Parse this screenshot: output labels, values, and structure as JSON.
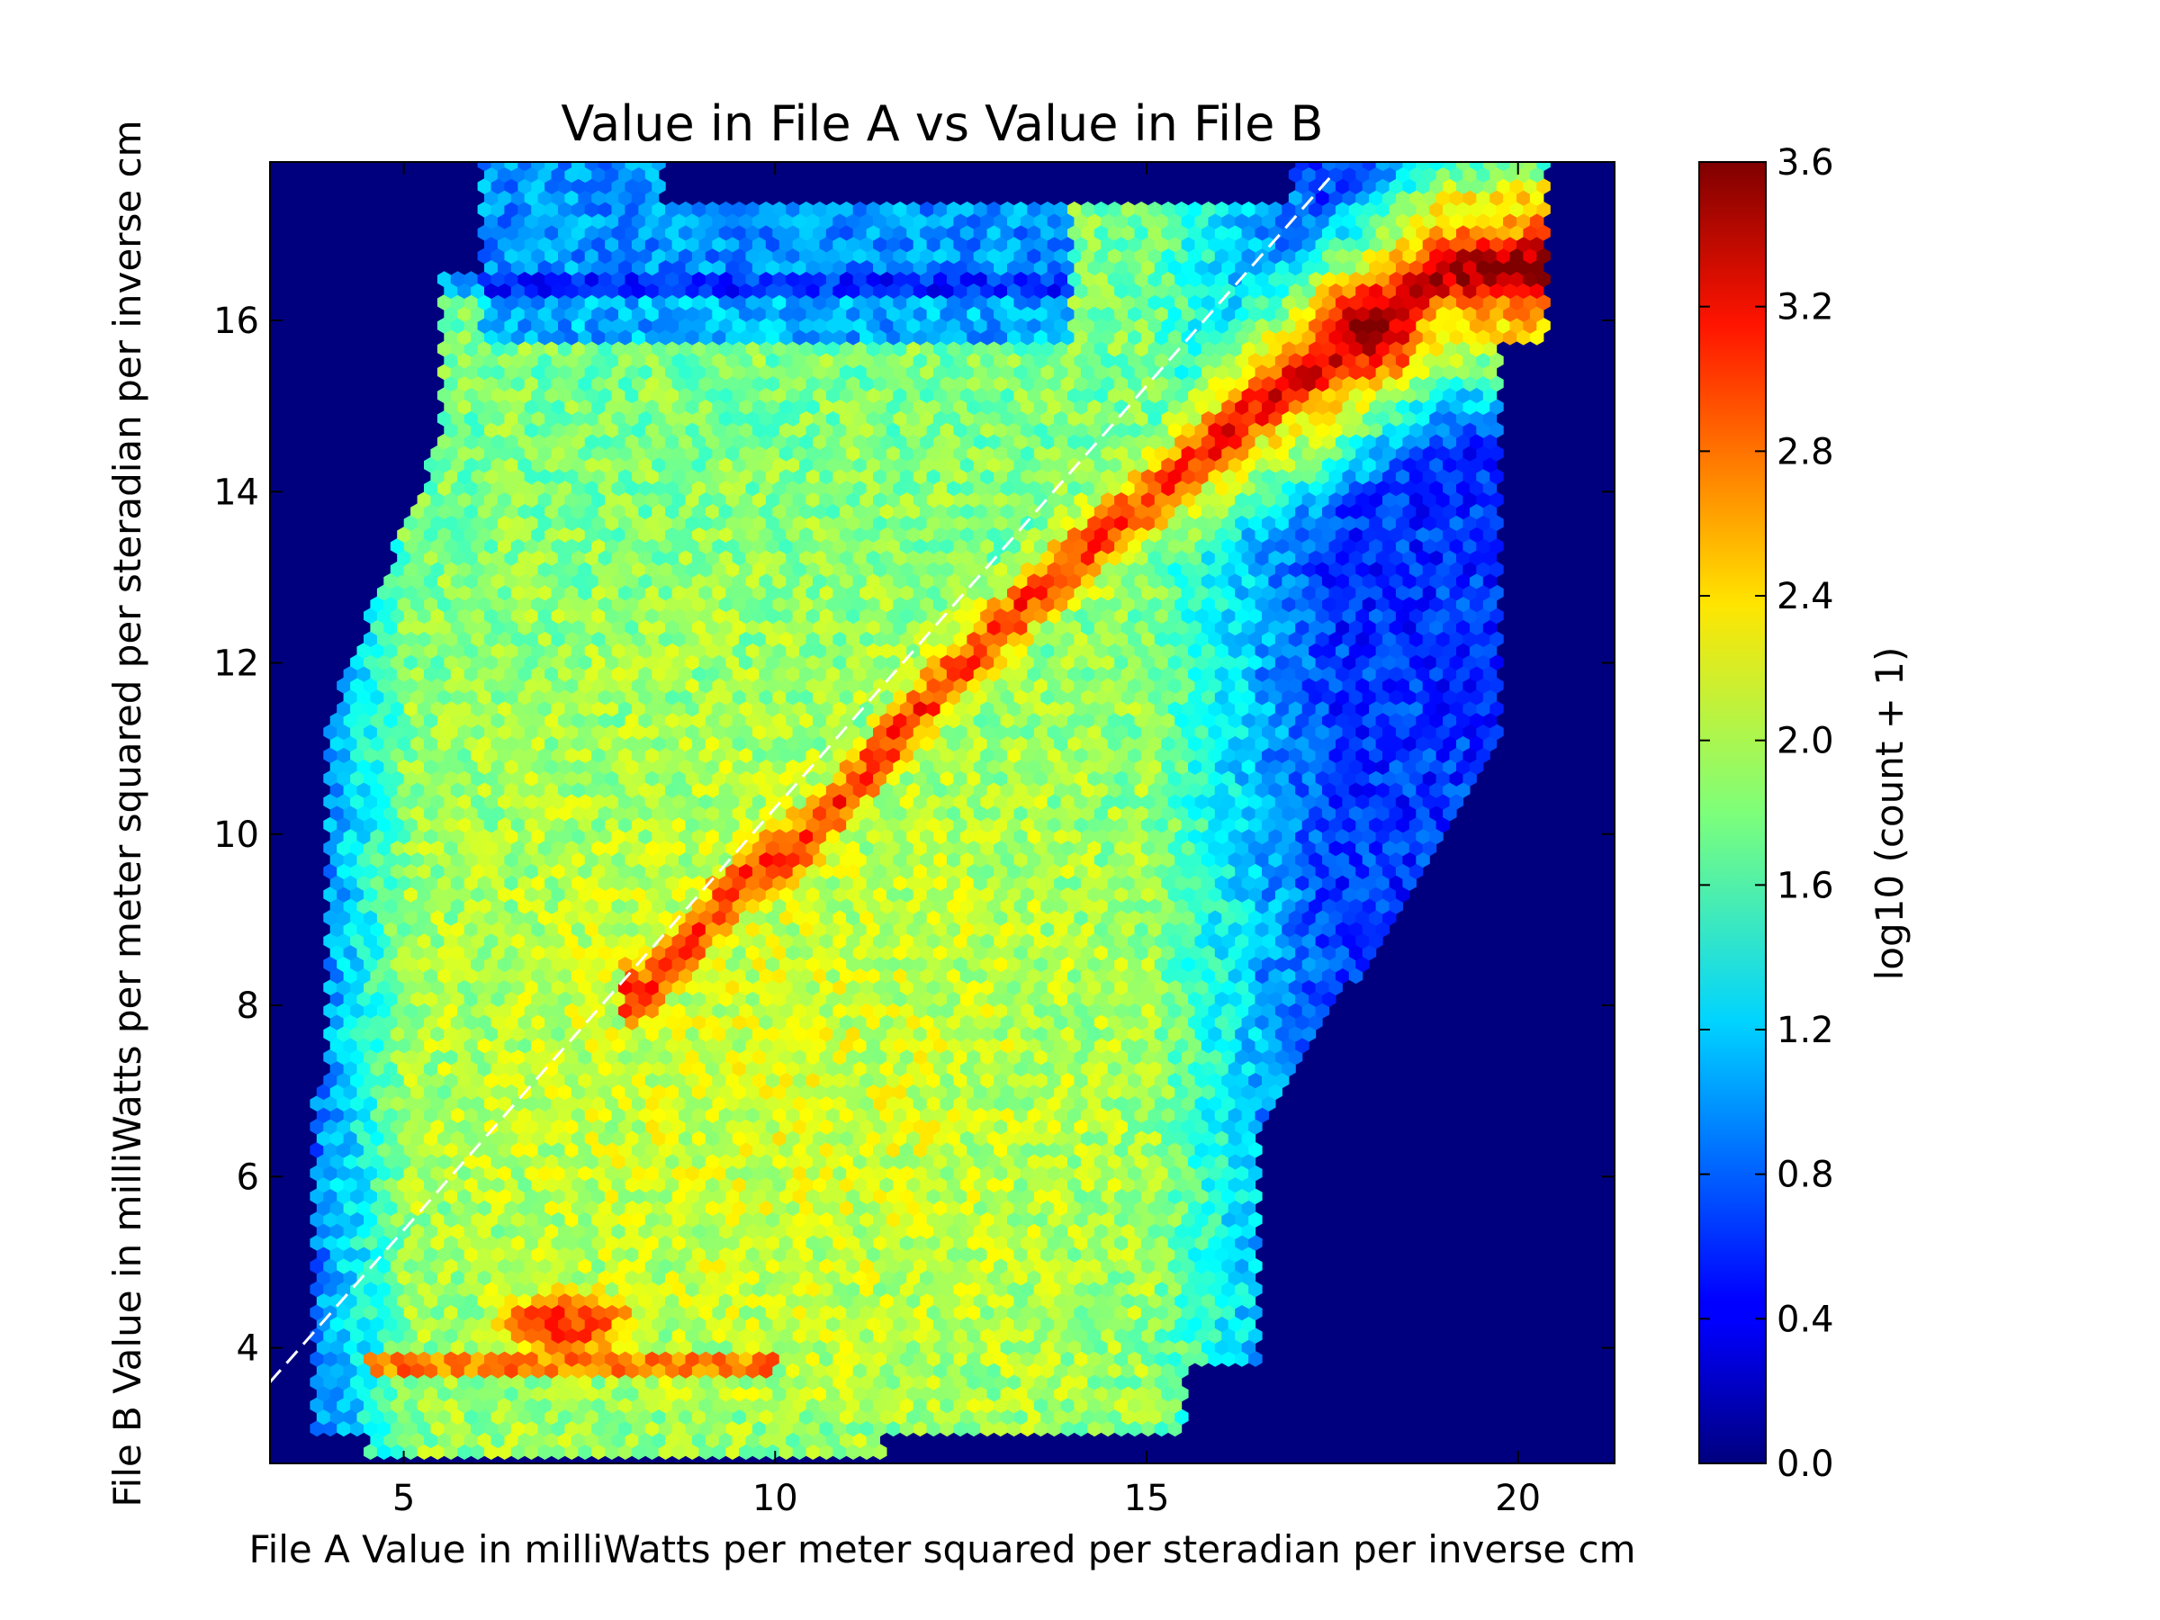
{
  "chart_data": {
    "type": "heatmap",
    "subtype": "hexbin",
    "title": "Value in File A vs Value in File B",
    "xlabel": "File A Value in milliWatts per meter squared per steradian per inverse cm",
    "ylabel": "File B Value in milliWatts per meter squared per steradian per inverse cm",
    "xlim": [
      3.2,
      21.3
    ],
    "ylim": [
      2.65,
      17.85
    ],
    "x_ticks": [
      5,
      10,
      15,
      20
    ],
    "y_ticks": [
      4,
      6,
      8,
      10,
      12,
      14,
      16
    ],
    "x_tick_labels": [
      "5",
      "10",
      "15",
      "20"
    ],
    "y_tick_labels": [
      "4",
      "6",
      "8",
      "10",
      "12",
      "14",
      "16"
    ],
    "background_color": "#00007f",
    "colormap": "jet",
    "colorbar": {
      "label": "log10 (count + 1)",
      "range": [
        0.0,
        3.6
      ],
      "ticks": [
        0.0,
        0.4,
        0.8,
        1.2,
        1.6,
        2.0,
        2.4,
        2.8,
        3.2,
        3.6
      ],
      "tick_labels": [
        "0.0",
        "0.4",
        "0.8",
        "1.2",
        "1.6",
        "2.0",
        "2.4",
        "2.8",
        "3.2",
        "3.6"
      ]
    },
    "reference_line": {
      "style": "dashed",
      "color": "#ffffff",
      "x": [
        3.2,
        17.5
      ],
      "y": [
        3.6,
        17.7
      ]
    },
    "density_features": {
      "data_region_x": [
        3.8,
        20.3
      ],
      "data_region_y": [
        2.7,
        17.8
      ],
      "ridge": {
        "x": [
          8.2,
          9.5,
          10.5,
          12.0,
          13.5,
          15.0,
          16.5,
          18.0,
          19.0
        ],
        "y": [
          8.1,
          9.4,
          10.0,
          11.5,
          12.8,
          13.9,
          15.0,
          15.9,
          16.6
        ]
      },
      "peak": {
        "x": 18.0,
        "y": 15.9,
        "value": 3.6
      },
      "secondary_peak": {
        "x": 7.2,
        "y": 4.3,
        "value": 3.0
      }
    }
  }
}
